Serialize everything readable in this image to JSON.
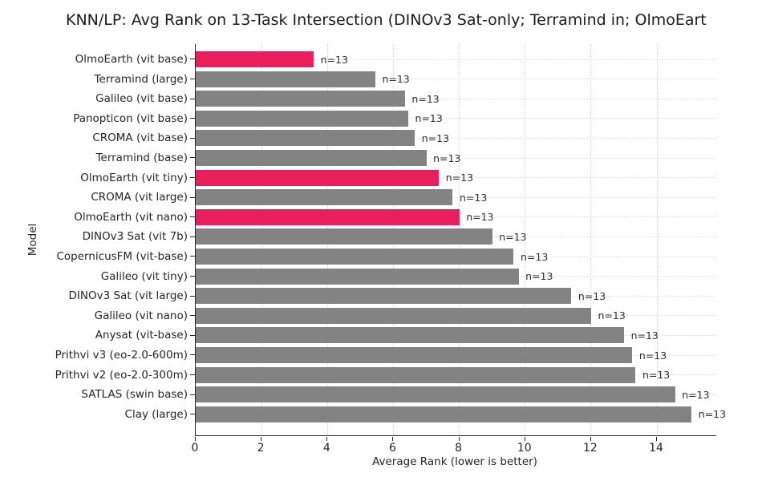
{
  "title": "KNN/LP: Avg Rank on 13-Task Intersection (DINOv3 Sat-only; Terramind in; OlmoEart",
  "chart_data": {
    "type": "bar",
    "orientation": "horizontal",
    "title": "KNN/LP: Avg Rank on 13-Task Intersection (DINOv3 Sat-only; Terramind in; OlmoEart",
    "xlabel": "Average Rank (lower is better)",
    "ylabel": "Model",
    "xlim": [
      0,
      15.8
    ],
    "xticks": [
      0,
      2,
      4,
      6,
      8,
      10,
      12,
      14
    ],
    "grid": true,
    "legend": "none",
    "bar_count_label": "n=13",
    "categories": [
      "OlmoEarth (vit base)",
      "Terramind (large)",
      "Galileo (vit base)",
      "Panopticon (vit base)",
      "CROMA (vit base)",
      "Terramind (base)",
      "OlmoEarth (vit tiny)",
      "CROMA (vit large)",
      "OlmoEarth (vit nano)",
      "DINOv3 Sat (vit 7b)",
      "CopernicusFM (vit-base)",
      "Galileo (vit tiny)",
      "DINOv3 Sat (vit large)",
      "Galileo (vit nano)",
      "Anysat (vit-base)",
      "Prithvi v3 (eo-2.0-600m)",
      "Prithvi v2 (eo-2.0-300m)",
      "SATLAS (swin base)",
      "Clay (large)"
    ],
    "values": [
      3.58,
      5.45,
      6.35,
      6.45,
      6.65,
      7.0,
      7.38,
      7.8,
      8.0,
      9.0,
      9.65,
      9.8,
      11.4,
      12.0,
      13.0,
      13.25,
      13.35,
      14.55,
      15.05
    ],
    "highlighted": [
      true,
      false,
      false,
      false,
      false,
      false,
      true,
      false,
      true,
      false,
      false,
      false,
      false,
      false,
      false,
      false,
      false,
      false,
      false
    ],
    "colors": {
      "highlight": "#E91E5C",
      "default": "#838383",
      "spine": "#262626",
      "grid_vertical": "#d2d2d2",
      "grid_horizontal": "#e0e0e0",
      "text": "#262626"
    }
  }
}
